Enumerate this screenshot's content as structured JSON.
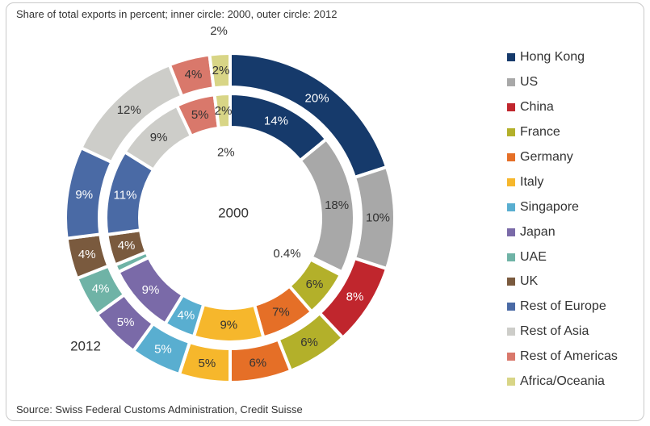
{
  "subtitle": "Share of total exports in percent; inner circle: 2000, outer circle: 2012",
  "source": "Source: Swiss Federal Customs Administration, Credit Suisse",
  "chart_data": {
    "type": "pie",
    "variant": "double-donut",
    "inner_label": "2000",
    "outer_label": "2012",
    "categories": [
      "Hong Kong",
      "US",
      "China",
      "France",
      "Germany",
      "Italy",
      "Singapore",
      "Japan",
      "UAE",
      "UK",
      "Rest of Europe",
      "Rest of Asia",
      "Rest of Americas",
      "Africa/Oceania"
    ],
    "colors": [
      "#163a6b",
      "#a8a8a8",
      "#c0262d",
      "#b3b02a",
      "#e56f27",
      "#f6b72c",
      "#59aed0",
      "#7a6aa8",
      "#6fb3a6",
      "#7a5a3e",
      "#4a6aa5",
      "#cdcdc9",
      "#d9786b",
      "#d8d586"
    ],
    "series": [
      {
        "name": "2000",
        "values": [
          14,
          18,
          0.4,
          6,
          7,
          9,
          4,
          9,
          1,
          4,
          11,
          9,
          5,
          2
        ],
        "labels": [
          "14%",
          "18%",
          "0.4%",
          "6%",
          "7%",
          "9%",
          "4%",
          "9%",
          "",
          "4%",
          "11%",
          "9%",
          "5%",
          "2%"
        ]
      },
      {
        "name": "2012",
        "values": [
          20,
          10,
          8,
          6,
          6,
          5,
          5,
          5,
          4,
          4,
          9,
          12,
          4,
          2
        ],
        "labels": [
          "20%",
          "10%",
          "8%",
          "6%",
          "6%",
          "5%",
          "5%",
          "5%",
          "4%",
          "4%",
          "9%",
          "12%",
          "4%",
          "2%"
        ]
      }
    ],
    "extra_labels": [
      "2%"
    ],
    "legend_position": "right"
  }
}
